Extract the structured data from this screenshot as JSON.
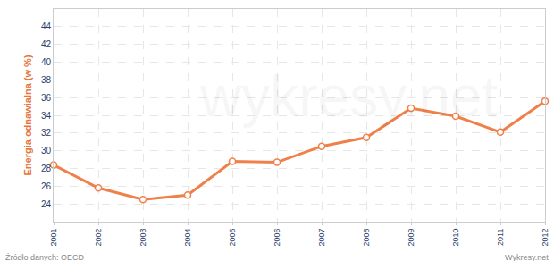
{
  "chart_data": {
    "type": "line",
    "y_label": "Energia odnawialna (w %)",
    "x": [
      2001,
      2002,
      2003,
      2004,
      2005,
      2006,
      2007,
      2008,
      2009,
      2010,
      2011,
      2012
    ],
    "values": [
      28.4,
      25.8,
      24.5,
      25.0,
      28.8,
      28.7,
      30.5,
      31.5,
      34.8,
      33.9,
      32.1,
      35.6
    ],
    "color": "#f0804a",
    "marker": "circle",
    "xlim": [
      2001,
      2012
    ],
    "xticks": [
      2001,
      2002,
      2003,
      2004,
      2005,
      2006,
      2007,
      2008,
      2009,
      2010,
      2011,
      2012
    ],
    "ylim": [
      22,
      46
    ],
    "yticks": [
      24,
      26,
      28,
      30,
      32,
      34,
      36,
      38,
      40,
      42,
      44
    ],
    "grid": true,
    "source": "Źródło danych: OECD",
    "credit": "Wykresy.net",
    "watermark": "wykresy.net"
  }
}
